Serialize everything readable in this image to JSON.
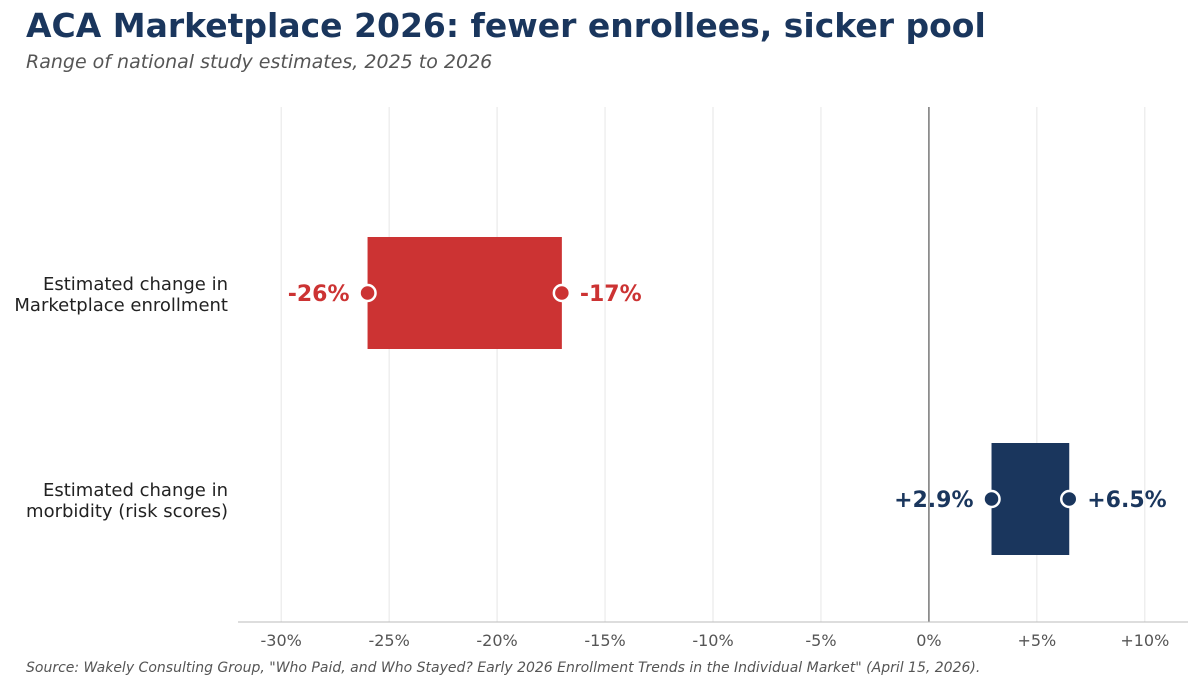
{
  "title": "ACA Marketplace 2026: fewer enrollees, sicker pool",
  "subtitle": "Range of national study estimates, 2025 to 2026",
  "source": "Source: Wakely Consulting Group, \"Who Paid, and Who Stayed? Early 2026 Enrollment Trends in the Individual Market\" (April 15, 2026).",
  "chart_data": {
    "type": "range_bar",
    "x_ticks": [
      {
        "value": -30,
        "label": "-30%"
      },
      {
        "value": -25,
        "label": "-25%"
      },
      {
        "value": -20,
        "label": "-20%"
      },
      {
        "value": -15,
        "label": "-15%"
      },
      {
        "value": -10,
        "label": "-10%"
      },
      {
        "value": -5,
        "label": "-5%"
      },
      {
        "value": 0,
        "label": "0%"
      },
      {
        "value": 5,
        "label": "+5%"
      },
      {
        "value": 10,
        "label": "+10%"
      }
    ],
    "xlim": [
      -32,
      12
    ],
    "grid": "vertical",
    "zero_line": true,
    "series": [
      {
        "category": [
          "Estimated change in",
          "Marketplace enrollment"
        ],
        "low": -26,
        "high": -17,
        "low_label": "-26%",
        "high_label": "-17%",
        "color": "#cc3333"
      },
      {
        "category": [
          "Estimated change in",
          "morbidity (risk scores)"
        ],
        "low": 2.9,
        "high": 6.5,
        "low_label": "+2.9%",
        "high_label": "+6.5%",
        "color": "#1a365d"
      }
    ]
  }
}
